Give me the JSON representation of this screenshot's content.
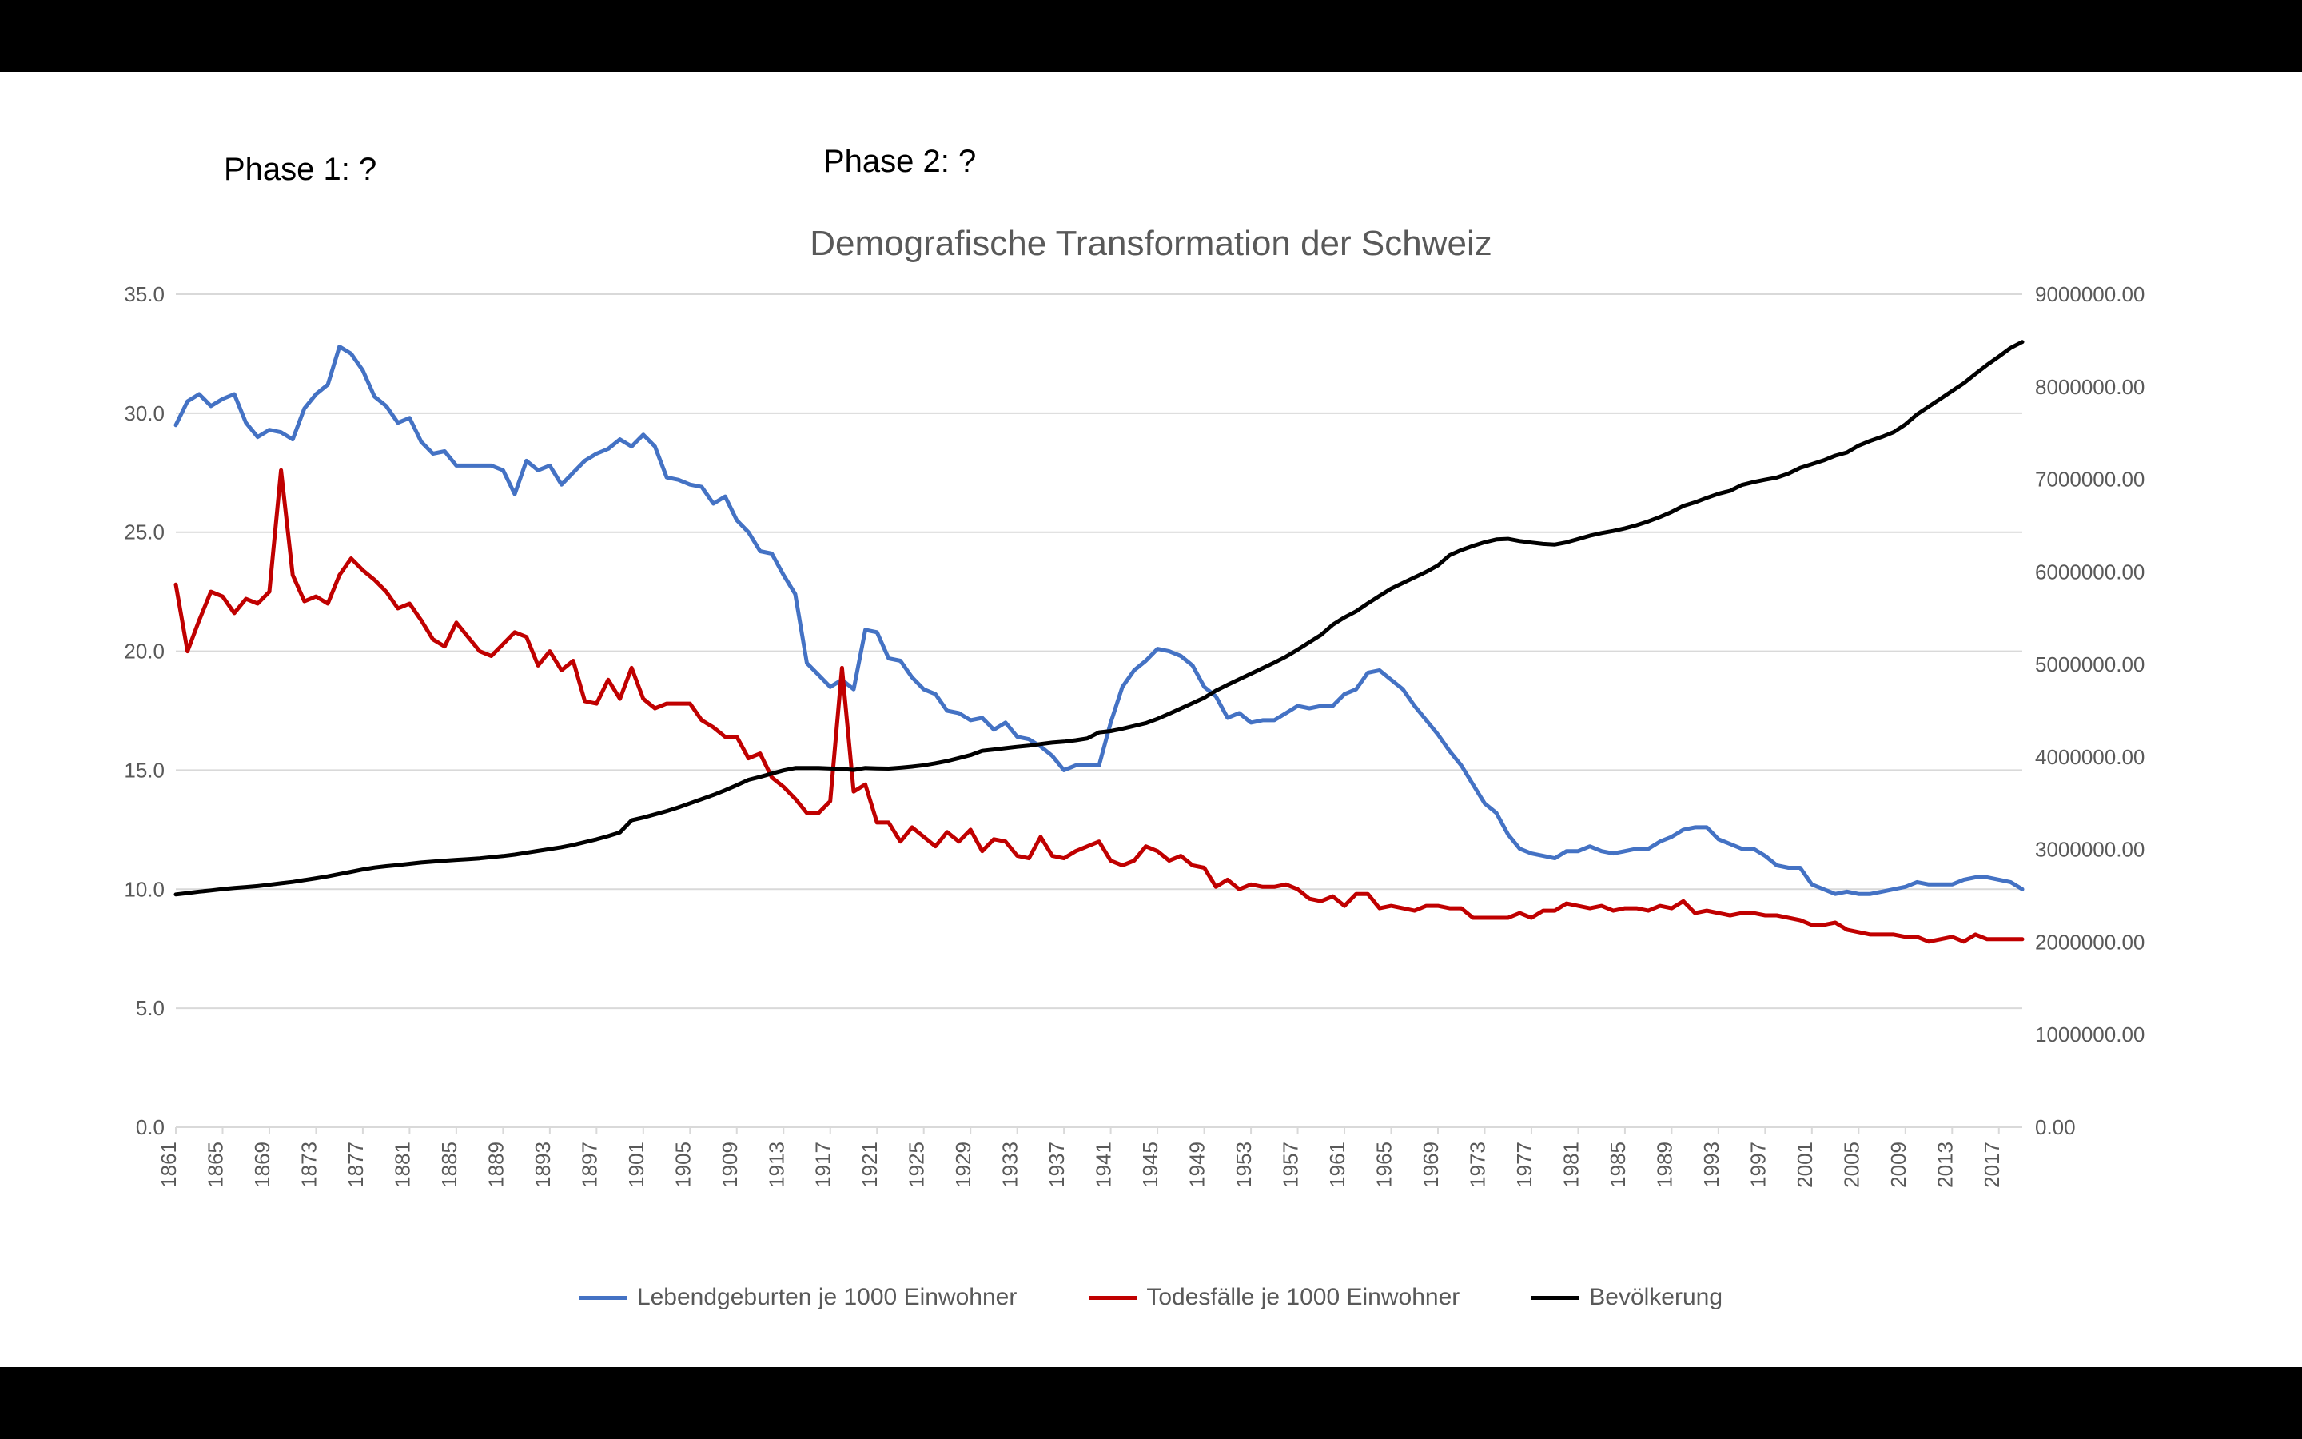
{
  "annotations": {
    "phase1": "Phase 1: ?",
    "phase2": "Phase 2: ?"
  },
  "chart": {
    "type": "line",
    "title": "Demografische Transformation der Schweiz",
    "title_fontsize": 44,
    "title_color": "#595959",
    "background_color": "#ffffff",
    "gridline_color": "#d9d9d9",
    "axis_text_color": "#595959",
    "axis_fontsize": 26,
    "line_width": 5,
    "x": {
      "categories": [
        1861,
        1862,
        1863,
        1864,
        1865,
        1866,
        1867,
        1868,
        1869,
        1870,
        1871,
        1872,
        1873,
        1874,
        1875,
        1876,
        1877,
        1878,
        1879,
        1880,
        1881,
        1882,
        1883,
        1884,
        1885,
        1886,
        1887,
        1888,
        1889,
        1890,
        1891,
        1892,
        1893,
        1894,
        1895,
        1896,
        1897,
        1898,
        1899,
        1900,
        1901,
        1902,
        1903,
        1904,
        1905,
        1906,
        1907,
        1908,
        1909,
        1910,
        1911,
        1912,
        1913,
        1914,
        1915,
        1916,
        1917,
        1918,
        1919,
        1920,
        1921,
        1922,
        1923,
        1924,
        1925,
        1926,
        1927,
        1928,
        1929,
        1930,
        1931,
        1932,
        1933,
        1934,
        1935,
        1936,
        1937,
        1938,
        1939,
        1940,
        1941,
        1942,
        1943,
        1944,
        1945,
        1946,
        1947,
        1948,
        1949,
        1950,
        1951,
        1952,
        1953,
        1954,
        1955,
        1956,
        1957,
        1958,
        1959,
        1960,
        1961,
        1962,
        1963,
        1964,
        1965,
        1966,
        1967,
        1968,
        1969,
        1970,
        1971,
        1972,
        1973,
        1974,
        1975,
        1976,
        1977,
        1978,
        1979,
        1980,
        1981,
        1982,
        1983,
        1984,
        1985,
        1986,
        1987,
        1988,
        1989,
        1990,
        1991,
        1992,
        1993,
        1994,
        1995,
        1996,
        1997,
        1998,
        1999,
        2000,
        2001,
        2002,
        2003,
        2004,
        2005,
        2006,
        2007,
        2008,
        2009,
        2010,
        2011,
        2012,
        2013,
        2014,
        2015,
        2016,
        2017,
        2018,
        2019
      ],
      "tick_labels": [
        1861,
        1865,
        1869,
        1873,
        1877,
        1881,
        1885,
        1889,
        1893,
        1897,
        1901,
        1905,
        1909,
        1913,
        1917,
        1921,
        1925,
        1929,
        1933,
        1937,
        1941,
        1945,
        1949,
        1953,
        1957,
        1961,
        1965,
        1969,
        1973,
        1977,
        1981,
        1985,
        1989,
        1993,
        1997,
        2001,
        2005,
        2009,
        2013,
        2017
      ]
    },
    "y_left": {
      "min": 0,
      "max": 35,
      "step": 5,
      "ticks": [
        "0.0",
        "5.0",
        "10.0",
        "15.0",
        "20.0",
        "25.0",
        "30.0",
        "35.0"
      ]
    },
    "y_right": {
      "min": 0,
      "max": 9000000,
      "step": 1000000,
      "ticks": [
        "0.00",
        "1000000.00",
        "2000000.00",
        "3000000.00",
        "4000000.00",
        "5000000.00",
        "6000000.00",
        "7000000.00",
        "8000000.00",
        "9000000.00"
      ]
    },
    "series": [
      {
        "name": "Lebendgeburten je 1000 Einwohner",
        "color": "#4472c4",
        "axis": "left",
        "values": [
          29.5,
          30.5,
          30.8,
          30.3,
          30.6,
          30.8,
          29.6,
          29.0,
          29.3,
          29.2,
          28.9,
          30.2,
          30.8,
          31.2,
          32.8,
          32.5,
          31.8,
          30.7,
          30.3,
          29.6,
          29.8,
          28.8,
          28.3,
          28.4,
          27.8,
          27.8,
          27.8,
          27.8,
          27.6,
          26.6,
          28.0,
          27.6,
          27.8,
          27.0,
          27.5,
          28.0,
          28.3,
          28.5,
          28.9,
          28.6,
          29.1,
          28.6,
          27.3,
          27.2,
          27.0,
          26.9,
          26.2,
          26.5,
          25.5,
          25.0,
          24.2,
          24.1,
          23.2,
          22.4,
          19.5,
          19.0,
          18.5,
          18.8,
          18.4,
          20.9,
          20.8,
          19.7,
          19.6,
          18.9,
          18.4,
          18.2,
          17.5,
          17.4,
          17.1,
          17.2,
          16.7,
          17.0,
          16.4,
          16.3,
          16.0,
          15.6,
          15.0,
          15.2,
          15.2,
          15.2,
          17.0,
          18.5,
          19.2,
          19.6,
          20.1,
          20.0,
          19.8,
          19.4,
          18.5,
          18.1,
          17.2,
          17.4,
          17.0,
          17.1,
          17.1,
          17.4,
          17.7,
          17.6,
          17.7,
          17.7,
          18.2,
          18.4,
          19.1,
          19.2,
          18.8,
          18.4,
          17.7,
          17.1,
          16.5,
          15.8,
          15.2,
          14.4,
          13.6,
          13.2,
          12.3,
          11.7,
          11.5,
          11.4,
          11.3,
          11.6,
          11.6,
          11.8,
          11.6,
          11.5,
          11.6,
          11.7,
          11.7,
          12.0,
          12.2,
          12.5,
          12.6,
          12.6,
          12.1,
          11.9,
          11.7,
          11.7,
          11.4,
          11.0,
          10.9,
          10.9,
          10.2,
          10.0,
          9.8,
          9.9,
          9.8,
          9.8,
          9.9,
          10.0,
          10.1,
          10.3,
          10.2,
          10.2,
          10.2,
          10.4,
          10.5,
          10.5,
          10.4,
          10.3,
          10.0
        ]
      },
      {
        "name": "Todesfälle je 1000 Einwohner",
        "color": "#c00000",
        "axis": "left",
        "values": [
          22.8,
          20.0,
          21.3,
          22.5,
          22.3,
          21.6,
          22.2,
          22.0,
          22.5,
          27.6,
          23.2,
          22.1,
          22.3,
          22.0,
          23.2,
          23.9,
          23.4,
          23.0,
          22.5,
          21.8,
          22.0,
          21.3,
          20.5,
          20.2,
          21.2,
          20.6,
          20.0,
          19.8,
          20.3,
          20.8,
          20.6,
          19.4,
          20.0,
          19.2,
          19.6,
          17.9,
          17.8,
          18.8,
          18.0,
          19.3,
          18.0,
          17.6,
          17.8,
          17.8,
          17.8,
          17.1,
          16.8,
          16.4,
          16.4,
          15.5,
          15.7,
          14.7,
          14.3,
          13.8,
          13.2,
          13.2,
          13.7,
          19.3,
          14.1,
          14.4,
          12.8,
          12.8,
          12.0,
          12.6,
          12.2,
          11.8,
          12.4,
          12.0,
          12.5,
          11.6,
          12.1,
          12.0,
          11.4,
          11.3,
          12.2,
          11.4,
          11.3,
          11.6,
          11.8,
          12.0,
          11.2,
          11.0,
          11.2,
          11.8,
          11.6,
          11.2,
          11.4,
          11.0,
          10.9,
          10.1,
          10.4,
          10.0,
          10.2,
          10.1,
          10.1,
          10.2,
          10.0,
          9.6,
          9.5,
          9.7,
          9.3,
          9.8,
          9.8,
          9.2,
          9.3,
          9.2,
          9.1,
          9.3,
          9.3,
          9.2,
          9.2,
          8.8,
          8.8,
          8.8,
          8.8,
          9.0,
          8.8,
          9.1,
          9.1,
          9.4,
          9.3,
          9.2,
          9.3,
          9.1,
          9.2,
          9.2,
          9.1,
          9.3,
          9.2,
          9.5,
          9.0,
          9.1,
          9.0,
          8.9,
          9.0,
          9.0,
          8.9,
          8.9,
          8.8,
          8.7,
          8.5,
          8.5,
          8.6,
          8.3,
          8.2,
          8.1,
          8.1,
          8.1,
          8.0,
          8.0,
          7.8,
          7.9,
          8.0,
          7.8,
          8.1,
          7.9,
          7.9,
          7.9,
          7.9
        ]
      },
      {
        "name": "Bevölkerung",
        "color": "#000000",
        "axis": "right",
        "values": [
          2515000,
          2530000,
          2545000,
          2558000,
          2573000,
          2585000,
          2595000,
          2605000,
          2620000,
          2635000,
          2650000,
          2670000,
          2690000,
          2710000,
          2735000,
          2760000,
          2785000,
          2805000,
          2820000,
          2832000,
          2846000,
          2860000,
          2870000,
          2880000,
          2888000,
          2895000,
          2905000,
          2917754,
          2930000,
          2945000,
          2965000,
          2985000,
          3005000,
          3025000,
          3050000,
          3080000,
          3110000,
          3145000,
          3185000,
          3315443,
          3345000,
          3380000,
          3415000,
          3455000,
          3500000,
          3545000,
          3590000,
          3640000,
          3695000,
          3753293,
          3785000,
          3820000,
          3855000,
          3880000,
          3880000,
          3880000,
          3875000,
          3870000,
          3860000,
          3880320,
          3876000,
          3874000,
          3883000,
          3895000,
          3910000,
          3932000,
          3956000,
          3988000,
          4020000,
          4066400,
          4080000,
          4095000,
          4110000,
          4122000,
          4140000,
          4155000,
          4165000,
          4180000,
          4200000,
          4265703,
          4280000,
          4305000,
          4335000,
          4365000,
          4412000,
          4467000,
          4524000,
          4582000,
          4640000,
          4717200,
          4780000,
          4840000,
          4900000,
          4960000,
          5020000,
          5085000,
          5160000,
          5240000,
          5320000,
          5429061,
          5508000,
          5574000,
          5660000,
          5740000,
          5820000,
          5880000,
          5940000,
          6000000,
          6070000,
          6180000,
          6235000,
          6280000,
          6320000,
          6350000,
          6356000,
          6333000,
          6316000,
          6302000,
          6295000,
          6319000,
          6354000,
          6391000,
          6419000,
          6442000,
          6470000,
          6504000,
          6545000,
          6593000,
          6647000,
          6712273,
          6751000,
          6799000,
          6843000,
          6875000,
          6938000,
          6969000,
          6995000,
          7019000,
          7062000,
          7124000,
          7164000,
          7204000,
          7255000,
          7290000,
          7364000,
          7415000,
          7459000,
          7509000,
          7593000,
          7701856,
          7785806,
          7870134,
          7954662,
          8039060,
          8139631,
          8237666,
          8327126,
          8419550,
          8484130
        ]
      }
    ],
    "legend_position": "bottom"
  }
}
